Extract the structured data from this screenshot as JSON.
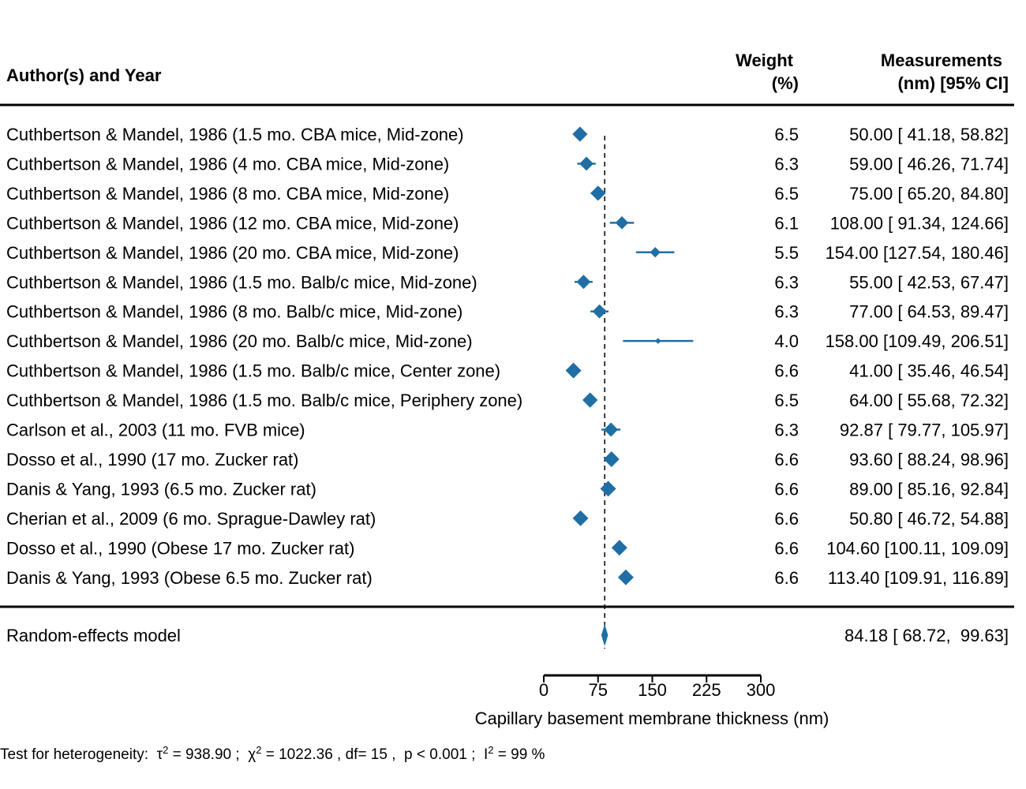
{
  "chart_data": {
    "type": "forest",
    "headers": {
      "study": "Author(s) and Year",
      "weight_line1": "Weight",
      "weight_line2": "(%)",
      "measure_line1": "Measurements",
      "measure_line2": "(nm) [95% CI]"
    },
    "studies": [
      {
        "label": "Cuthbertson & Mandel, 1986 (1.5 mo. CBA mice, Mid-zone)",
        "weight": "6.5",
        "est": 50.0,
        "lo": 41.18,
        "hi": 58.82,
        "ci_text": "50.00 [ 41.18,  58.82]"
      },
      {
        "label": "Cuthbertson & Mandel, 1986 (4 mo. CBA mice, Mid-zone)",
        "weight": "6.3",
        "est": 59.0,
        "lo": 46.26,
        "hi": 71.74,
        "ci_text": "59.00 [ 46.26,  71.74]"
      },
      {
        "label": "Cuthbertson & Mandel, 1986 (8 mo. CBA mice, Mid-zone)",
        "weight": "6.5",
        "est": 75.0,
        "lo": 65.2,
        "hi": 84.8,
        "ci_text": "75.00 [ 65.20,  84.80]"
      },
      {
        "label": "Cuthbertson & Mandel, 1986 (12 mo. CBA mice, Mid-zone)",
        "weight": "6.1",
        "est": 108.0,
        "lo": 91.34,
        "hi": 124.66,
        "ci_text": "108.00 [ 91.34, 124.66]"
      },
      {
        "label": "Cuthbertson & Mandel, 1986 (20 mo. CBA mice, Mid-zone)",
        "weight": "5.5",
        "est": 154.0,
        "lo": 127.54,
        "hi": 180.46,
        "ci_text": "154.00 [127.54, 180.46]"
      },
      {
        "label": "Cuthbertson & Mandel, 1986 (1.5 mo. Balb/c mice, Mid-zone)",
        "weight": "6.3",
        "est": 55.0,
        "lo": 42.53,
        "hi": 67.47,
        "ci_text": "55.00 [ 42.53,  67.47]"
      },
      {
        "label": "Cuthbertson & Mandel, 1986 (8 mo. Balb/c mice, Mid-zone)",
        "weight": "6.3",
        "est": 77.0,
        "lo": 64.53,
        "hi": 89.47,
        "ci_text": "77.00 [ 64.53,  89.47]"
      },
      {
        "label": "Cuthbertson & Mandel, 1986 (20 mo. Balb/c mice, Mid-zone)",
        "weight": "4.0",
        "est": 158.0,
        "lo": 109.49,
        "hi": 206.51,
        "ci_text": "158.00 [109.49, 206.51]"
      },
      {
        "label": "Cuthbertson & Mandel, 1986 (1.5 mo. Balb/c mice, Center zone)",
        "weight": "6.6",
        "est": 41.0,
        "lo": 35.46,
        "hi": 46.54,
        "ci_text": "41.00 [ 35.46,  46.54]"
      },
      {
        "label": "Cuthbertson & Mandel, 1986 (1.5 mo. Balb/c mice, Periphery zone)",
        "weight": "6.5",
        "est": 64.0,
        "lo": 55.68,
        "hi": 72.32,
        "ci_text": "64.00 [ 55.68,  72.32]"
      },
      {
        "label": "Carlson et al., 2003 (11 mo. FVB mice)",
        "weight": "6.3",
        "est": 92.87,
        "lo": 79.77,
        "hi": 105.97,
        "ci_text": "92.87 [ 79.77, 105.97]"
      },
      {
        "label": "Dosso et al., 1990 (17 mo. Zucker rat)",
        "weight": "6.6",
        "est": 93.6,
        "lo": 88.24,
        "hi": 98.96,
        "ci_text": "93.60 [ 88.24,  98.96]"
      },
      {
        "label": "Danis & Yang, 1993 (6.5 mo. Zucker rat)",
        "weight": "6.6",
        "est": 89.0,
        "lo": 85.16,
        "hi": 92.84,
        "ci_text": "89.00 [ 85.16,  92.84]"
      },
      {
        "label": "Cherian et al., 2009 (6 mo. Sprague-Dawley rat)",
        "weight": "6.6",
        "est": 50.8,
        "lo": 46.72,
        "hi": 54.88,
        "ci_text": "50.80 [ 46.72,  54.88]"
      },
      {
        "label": "Dosso et al., 1990 (Obese 17 mo. Zucker rat)",
        "weight": "6.6",
        "est": 104.6,
        "lo": 100.11,
        "hi": 109.09,
        "ci_text": "104.60 [100.11, 109.09]"
      },
      {
        "label": "Danis & Yang, 1993 (Obese 6.5 mo. Zucker rat)",
        "weight": "6.6",
        "est": 113.4,
        "lo": 109.91,
        "hi": 116.89,
        "ci_text": "113.40 [109.91, 116.89]"
      }
    ],
    "summary": {
      "label": "Random-effects model",
      "est": 84.18,
      "lo": 68.72,
      "hi": 99.63,
      "ci_text": "84.18 [ 68.72,  99.63]"
    },
    "xaxis": {
      "label": "Capillary basement membrane thickness (nm)",
      "ticks": [
        0,
        75,
        150,
        225,
        300
      ],
      "range": [
        0,
        300
      ]
    },
    "footnote": {
      "prefix": "Test for heterogeneity:  ",
      "tau_sym": "τ",
      "tau_rest": " = 938.90 ;  ",
      "chi_sym": "χ",
      "chi_rest": " = 1022.36 , df= 15 ,  p < 0.001 ;  ",
      "i_sym": "I",
      "i_rest": " = 99 %",
      "sup": "2"
    },
    "colors": {
      "marker": "#1f6fa5",
      "reference_line": "#000000"
    }
  }
}
